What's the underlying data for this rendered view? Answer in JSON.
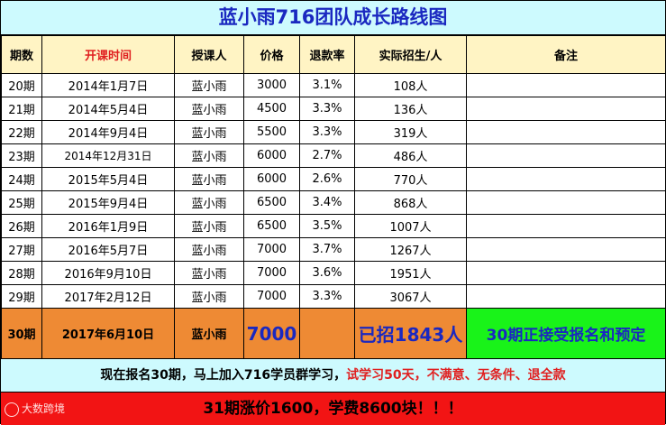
{
  "title": "蓝小雨716团队成长路线图",
  "headers": {
    "period": "期数",
    "start_date": "开课时间",
    "teacher": "授课人",
    "price": "价格",
    "refund_rate": "退款率",
    "enrolled": "实际招生/人",
    "notes": "备注"
  },
  "rows": [
    {
      "period": "20期",
      "date": "2014年1月7日",
      "teacher": "蓝小雨",
      "price": "3000",
      "refund": "3.1%",
      "enrolled": "108人",
      "note": ""
    },
    {
      "period": "21期",
      "date": "2014年5月4日",
      "teacher": "蓝小雨",
      "price": "4500",
      "refund": "3.3%",
      "enrolled": "136人",
      "note": ""
    },
    {
      "period": "22期",
      "date": "2014年9月4日",
      "teacher": "蓝小雨",
      "price": "5500",
      "refund": "3.3%",
      "enrolled": "319人",
      "note": ""
    },
    {
      "period": "23期",
      "date": "2014年12月31日",
      "teacher": "蓝小雨",
      "price": "6000",
      "refund": "2.7%",
      "enrolled": "486人",
      "note": ""
    },
    {
      "period": "24期",
      "date": "2015年5月4日",
      "teacher": "蓝小雨",
      "price": "6000",
      "refund": "2.6%",
      "enrolled": "770人",
      "note": ""
    },
    {
      "period": "25期",
      "date": "2015年9月4日",
      "teacher": "蓝小雨",
      "price": "6500",
      "refund": "3.4%",
      "enrolled": "868人",
      "note": ""
    },
    {
      "period": "26期",
      "date": "2016年1月9日",
      "teacher": "蓝小雨",
      "price": "6500",
      "refund": "3.5%",
      "enrolled": "1007人",
      "note": ""
    },
    {
      "period": "27期",
      "date": "2016年5月7日",
      "teacher": "蓝小雨",
      "price": "7000",
      "refund": "3.7%",
      "enrolled": "1267人",
      "note": ""
    },
    {
      "period": "28期",
      "date": "2016年9月10日",
      "teacher": "蓝小雨",
      "price": "7000",
      "refund": "3.6%",
      "enrolled": "1951人",
      "note": ""
    },
    {
      "period": "29期",
      "date": "2017年2月12日",
      "teacher": "蓝小雨",
      "price": "7000",
      "refund": "3.3%",
      "enrolled": "3067人",
      "note": ""
    }
  ],
  "current": {
    "period": "30期",
    "date": "2017年6月10日",
    "teacher": "蓝小雨",
    "price": "7000",
    "refund": "",
    "enrolled": "已招1843人",
    "note": "30期正接受报名和预定"
  },
  "promo": {
    "part1": "现在报名30期，马上加入716学员群学习，",
    "part2": "试学习50天，不满意、无条件、退全款"
  },
  "banner": {
    "text": "31期涨价1600，学费8600块！！！",
    "watermark": "大数跨境"
  },
  "colors": {
    "title": "#1a28c0",
    "header_bg": "#fff4c4",
    "header_highlight": "#e02020",
    "page_bg": "#cdfafe",
    "current_row_bg": "#ee8a34",
    "current_note_bg": "#19f319",
    "banner_bg": "#f21414",
    "emphasis_red": "#e02020"
  }
}
